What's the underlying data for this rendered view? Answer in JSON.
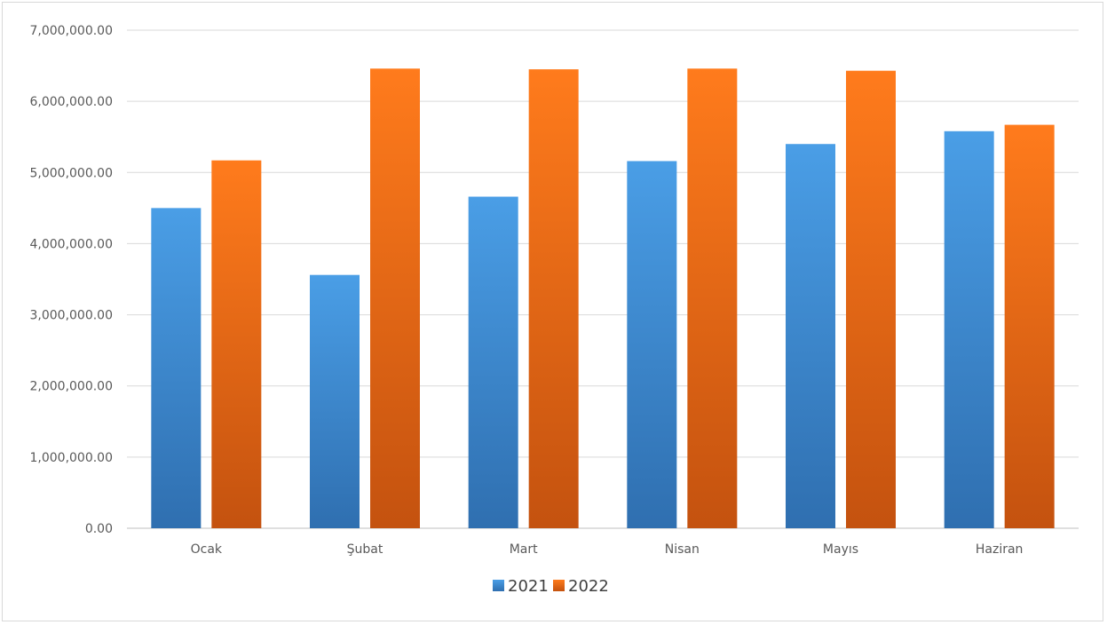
{
  "chart_data": {
    "type": "bar",
    "categories": [
      "Ocak",
      "Şubat",
      "Mart",
      "Nisan",
      "Mayıs",
      "Haziran"
    ],
    "series": [
      {
        "name": "2021",
        "color": "#3f8fd8",
        "values": [
          4500000,
          3560000,
          4660000,
          5160000,
          5400000,
          5580000
        ]
      },
      {
        "name": "2022",
        "color": "#f07318",
        "values": [
          5170000,
          6460000,
          6450000,
          6460000,
          6430000,
          5670000
        ]
      }
    ],
    "y_ticks": [
      "0.00",
      "1,000,000.00",
      "2,000,000.00",
      "3,000,000.00",
      "4,000,000.00",
      "5,000,000.00",
      "6,000,000.00",
      "7,000,000.00"
    ],
    "ylim": [
      0,
      7000000
    ],
    "grid": true,
    "legend": "bottom-center"
  }
}
